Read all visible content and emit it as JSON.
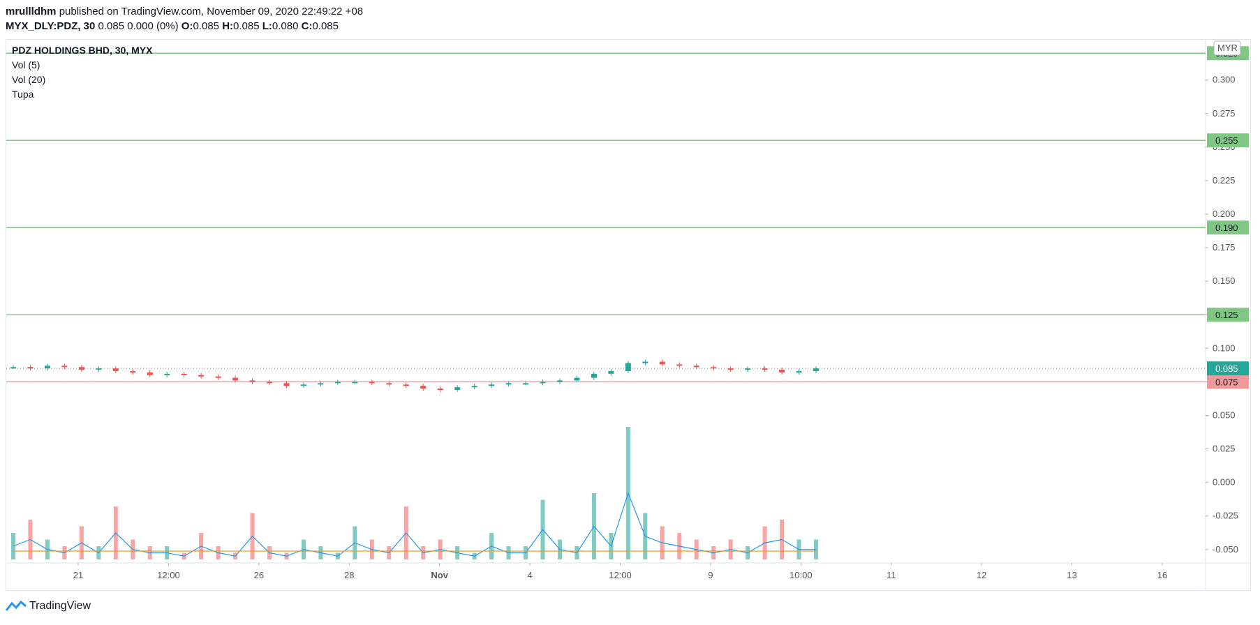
{
  "header": {
    "author": "mrullldhm",
    "published_text": "published on TradingView.com, November 09, 2020 22:49:22 +08",
    "symbol_line": "MYX_DLY:PDZ, 30",
    "quote_values": "0.085 0.000 (0%)",
    "o_label": "O:",
    "o_value": "0.085",
    "h_label": "H:",
    "h_value": "0.085",
    "l_label": "L:",
    "l_value": "0.080",
    "c_label": "C:",
    "c_value": "0.085"
  },
  "legend": {
    "title": "PDZ HOLDINGS BHD, 30, MYX",
    "items": [
      "Vol (5)",
      "Vol (20)",
      "Tupa"
    ]
  },
  "currency_badge": "MYR",
  "footer": {
    "brand": "TradingView"
  },
  "chart_data": {
    "type": "candlestick",
    "y_ticks": [
      "0.300",
      "0.275",
      "0.250",
      "0.225",
      "0.200",
      "0.175",
      "0.150",
      "0.125",
      "0.100",
      "0.075",
      "0.050",
      "0.025",
      "0.000",
      "-0.025",
      "-0.050"
    ],
    "ylim": [
      -0.06,
      0.33
    ],
    "x_ticks": [
      "21",
      "12:00",
      "26",
      "28",
      "Nov",
      "4",
      "12:00",
      "9",
      "10:00",
      "11",
      "12",
      "13",
      "16"
    ],
    "horizontal_levels": [
      {
        "value": 0.32,
        "label": "0.320",
        "color": "#81c784"
      },
      {
        "value": 0.255,
        "label": "0.255",
        "color": "#81c784"
      },
      {
        "value": 0.19,
        "label": "0.190",
        "color": "#81c784"
      },
      {
        "value": 0.125,
        "label": "0.125",
        "color": "#81c784"
      },
      {
        "value": 0.075,
        "label": "0.075",
        "color": "#ef9a9a"
      }
    ],
    "last_price": {
      "value": 0.085,
      "label": "0.085",
      "color": "#26a69a"
    },
    "candles_close": [
      0.086,
      0.085,
      0.087,
      0.086,
      0.084,
      0.085,
      0.083,
      0.082,
      0.08,
      0.081,
      0.08,
      0.079,
      0.078,
      0.076,
      0.075,
      0.074,
      0.072,
      0.073,
      0.074,
      0.075,
      0.075,
      0.074,
      0.073,
      0.072,
      0.07,
      0.069,
      0.071,
      0.072,
      0.073,
      0.074,
      0.074,
      0.075,
      0.076,
      0.078,
      0.081,
      0.083,
      0.089,
      0.09,
      0.088,
      0.087,
      0.086,
      0.085,
      0.084,
      0.085,
      0.084,
      0.082,
      0.083,
      0.085
    ],
    "volume": [
      0.4,
      0.6,
      0.3,
      0.2,
      0.5,
      0.2,
      0.8,
      0.3,
      0.2,
      0.2,
      0.1,
      0.4,
      0.2,
      0.1,
      0.7,
      0.2,
      0.1,
      0.3,
      0.2,
      0.1,
      0.5,
      0.3,
      0.2,
      0.8,
      0.2,
      0.3,
      0.2,
      0.1,
      0.4,
      0.2,
      0.2,
      0.9,
      0.3,
      0.2,
      1.0,
      0.4,
      2.0,
      0.7,
      0.5,
      0.4,
      0.3,
      0.2,
      0.3,
      0.2,
      0.5,
      0.6,
      0.3,
      0.3
    ],
    "currency": "MYR"
  },
  "colors": {
    "up": "#26a69a",
    "down": "#ef5350",
    "vol_up": "#80cbc4",
    "vol_down": "#f8a5a5",
    "ma_fast": "#2196f3",
    "ma_slow": "#ff9800",
    "resistance": "#81c784",
    "support": "#ef9a9a"
  }
}
